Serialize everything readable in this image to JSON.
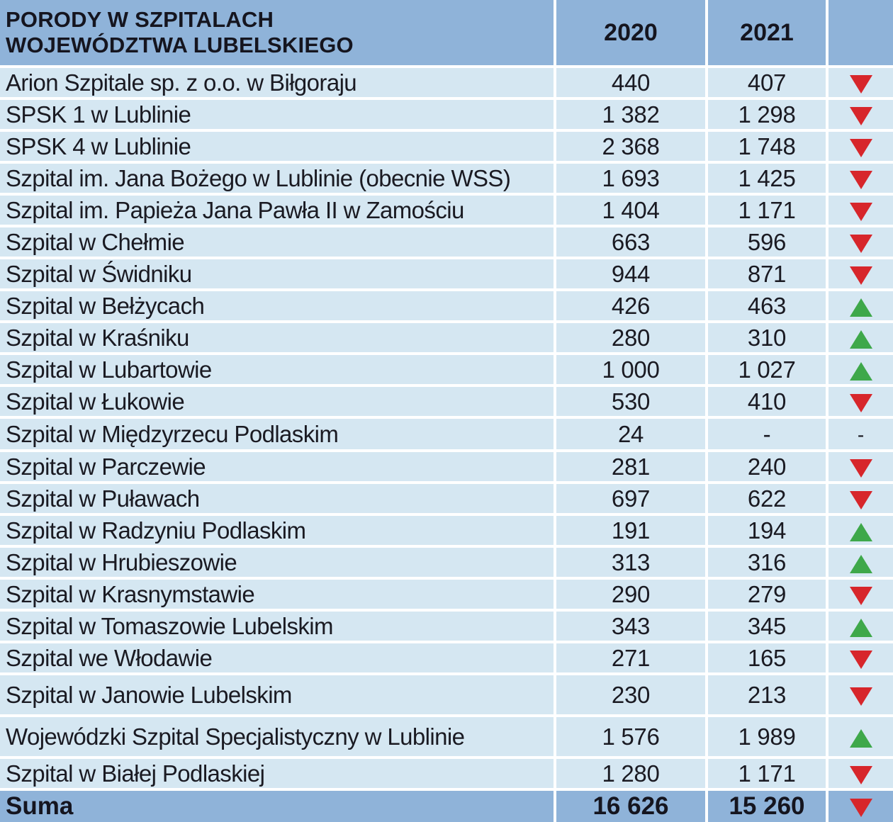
{
  "chart_data": {
    "type": "table",
    "title_line1": "PORODY W SZPITALACH",
    "title_line2": "WOJEWÓDZTWA LUBELSKIEGO",
    "columns": [
      "2020",
      "2021",
      ""
    ],
    "rows": [
      {
        "name": "Arion Szpitale sp. z o.o. w Biłgoraju",
        "y2020": "440",
        "y2021": "407",
        "trend": "down"
      },
      {
        "name": "SPSK 1 w Lublinie",
        "y2020": "1 382",
        "y2021": "1 298",
        "trend": "down"
      },
      {
        "name": "SPSK 4 w Lublinie",
        "y2020": "2 368",
        "y2021": "1 748",
        "trend": "down"
      },
      {
        "name": "Szpital im. Jana Bożego w Lublinie (obecnie WSS)",
        "y2020": "1 693",
        "y2021": "1 425",
        "trend": "down"
      },
      {
        "name": "Szpital im. Papieża Jana Pawła II w Zamościu",
        "y2020": "1 404",
        "y2021": "1 171",
        "trend": "down"
      },
      {
        "name": "Szpital w Chełmie",
        "y2020": "663",
        "y2021": "596",
        "trend": "down"
      },
      {
        "name": "Szpital w Świdniku",
        "y2020": "944",
        "y2021": "871",
        "trend": "down"
      },
      {
        "name": "Szpital w Bełżycach",
        "y2020": "426",
        "y2021": "463",
        "trend": "up"
      },
      {
        "name": "Szpital w Kraśniku",
        "y2020": "280",
        "y2021": "310",
        "trend": "up"
      },
      {
        "name": "Szpital w Lubartowie",
        "y2020": "1 000",
        "y2021": "1 027",
        "trend": "up"
      },
      {
        "name": "Szpital w Łukowie",
        "y2020": "530",
        "y2021": "410",
        "trend": "down"
      },
      {
        "name": "Szpital w Międzyrzecu Podlaskim",
        "y2020": "24",
        "y2021": "-",
        "trend": "-"
      },
      {
        "name": "Szpital w Parczewie",
        "y2020": "281",
        "y2021": "240",
        "trend": "down"
      },
      {
        "name": "Szpital w Puławach",
        "y2020": "697",
        "y2021": "622",
        "trend": "down"
      },
      {
        "name": "Szpital w Radzyniu Podlaskim",
        "y2020": "191",
        "y2021": "194",
        "trend": "up"
      },
      {
        "name": "Szpital w Hrubieszowie",
        "y2020": "313",
        "y2021": "316",
        "trend": "up"
      },
      {
        "name": "Szpital w Krasnymstawie",
        "y2020": "290",
        "y2021": "279",
        "trend": "down"
      },
      {
        "name": "Szpital w Tomaszowie Lubelskim",
        "y2020": "343",
        "y2021": "345",
        "trend": "up"
      },
      {
        "name": "Szpital we Włodawie",
        "y2020": "271",
        "y2021": "165",
        "trend": "down"
      },
      {
        "name": "Szpital w Janowie Lubelskim",
        "y2020": "230",
        "y2021": "213",
        "trend": "down"
      },
      {
        "name": "Wojewódzki Szpital Specjalistyczny w Lublinie",
        "y2020": "1 576",
        "y2021": "1 989",
        "trend": "up"
      },
      {
        "name": "Szpital w Białej Podlaskiej",
        "y2020": "1 280",
        "y2021": "1 171",
        "trend": "down"
      }
    ],
    "total": {
      "name": "Suma",
      "y2020": "16 626",
      "y2021": "15 260",
      "trend": "down"
    }
  },
  "colors": {
    "header_bg": "#8fb3d9",
    "row_bg": "#d5e7f2",
    "down": "#d7262b",
    "up": "#3ea84a"
  }
}
